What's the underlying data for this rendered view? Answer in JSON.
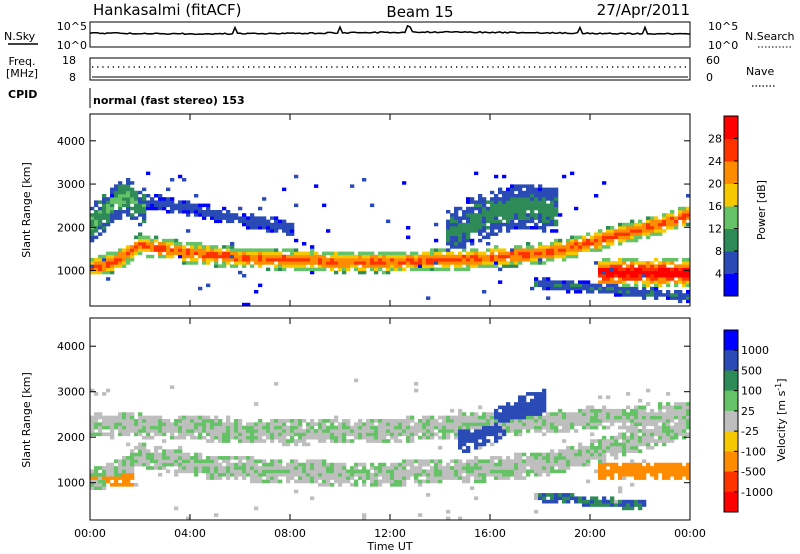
{
  "header": {
    "station": "Hankasalmi (fitACF)",
    "beam": "Beam 15",
    "date": "27/Apr/2011"
  },
  "top_panels": {
    "nsky_label": "N.Sky",
    "nsky_ticks": [
      "10^5",
      "10^0"
    ],
    "nsearch_label": "N.Search",
    "nsearch_ticks": [
      "10^5",
      "10^0"
    ],
    "freq_label": "Freq.",
    "freq_unit": "[MHz]",
    "freq_ticks": [
      "18",
      "8"
    ],
    "nave_label": "Nave",
    "nave_ticks": [
      "60",
      "0"
    ],
    "cpid_label": "CPID",
    "cpid_value": "normal (fast stereo) 153"
  },
  "colors": {
    "power_scale": [
      "#0000ff",
      "#2a4bb5",
      "#2e8b57",
      "#66c266",
      "#f5c800",
      "#ff8c00",
      "#ff3300",
      "#ff0000"
    ],
    "velocity_scale": [
      "#0000ff",
      "#2a4bb5",
      "#2e8b57",
      "#66c266",
      "#bebebe",
      "#f5c800",
      "#ff8c00",
      "#ff3300",
      "#ff0000"
    ],
    "ground_scatter": "#bebebe"
  },
  "chart_data": [
    {
      "type": "heatmap",
      "name": "power",
      "ylabel": "Slant Range [km]",
      "ylim": [
        180,
        4620
      ],
      "yticks": [
        "1000",
        "2000",
        "3000",
        "4000"
      ],
      "colorbar_label": "Power [dB]",
      "colorbar_ticks": [
        "4",
        "8",
        "12",
        "16",
        "20",
        "24",
        "28"
      ],
      "colorbar_range": [
        0,
        32
      ],
      "bands": [
        {
          "x": [
            0,
            1,
            2,
            3,
            4,
            6,
            8,
            10,
            12,
            14,
            16,
            18,
            19,
            20,
            21,
            22,
            23,
            24
          ],
          "y": [
            1050,
            1200,
            1600,
            1500,
            1400,
            1300,
            1250,
            1200,
            1200,
            1250,
            1300,
            1400,
            1500,
            1650,
            1800,
            1950,
            2100,
            2300
          ],
          "width": 280,
          "peak_db": 25
        },
        {
          "x": [
            20.5,
            21,
            22,
            23,
            24
          ],
          "y": [
            950,
            950,
            950,
            950,
            950
          ],
          "width": 380,
          "peak_db": 30
        },
        {
          "x": [
            0,
            0.5,
            1,
            1.5,
            2
          ],
          "y": [
            2000,
            2300,
            2600,
            2700,
            2500
          ],
          "width": 500,
          "peak_db": 12
        },
        {
          "x": [
            14.5,
            15.5,
            16.5,
            17.5,
            18.5
          ],
          "y": [
            1900,
            2200,
            2400,
            2500,
            2400
          ],
          "width": 600,
          "peak_db": 10
        },
        {
          "x": [
            18,
            19,
            20,
            21,
            22,
            23,
            24
          ],
          "y": [
            700,
            650,
            600,
            550,
            500,
            450,
            400
          ],
          "width": 150,
          "peak_db": 8
        },
        {
          "x": [
            2,
            3,
            4,
            5,
            6,
            7,
            8
          ],
          "y": [
            2600,
            2550,
            2450,
            2300,
            2200,
            2100,
            2000
          ],
          "width": 200,
          "peak_db": 6
        }
      ]
    },
    {
      "type": "heatmap",
      "name": "velocity",
      "xlabel": "Time UT",
      "xticks": [
        "00:00",
        "04:00",
        "08:00",
        "12:00",
        "16:00",
        "20:00",
        "00:00"
      ],
      "xlim": [
        0,
        24
      ],
      "ylabel": "Slant Range [km]",
      "ylim": [
        180,
        4620
      ],
      "yticks": [
        "1000",
        "2000",
        "3000",
        "4000"
      ],
      "colorbar_label": "Velocity [m s^-1]",
      "colorbar_ticks": [
        "1000",
        "500",
        "100",
        "25",
        "-25",
        "-100",
        "-500",
        "-1000"
      ],
      "bands": [
        {
          "x": [
            0,
            1,
            2,
            3,
            4,
            6,
            8,
            10,
            12,
            14,
            16,
            18,
            19,
            20,
            21,
            22,
            23,
            24
          ],
          "y": [
            1050,
            1200,
            1600,
            1500,
            1400,
            1300,
            1250,
            1200,
            1200,
            1250,
            1300,
            1400,
            1500,
            1650,
            1800,
            1950,
            2100,
            2300
          ],
          "width": 300,
          "velocity": 0
        },
        {
          "x": [
            0,
            0.5,
            1,
            1.5
          ],
          "y": [
            1100,
            1100,
            1100,
            1100
          ],
          "width": 200,
          "velocity": -150
        },
        {
          "x": [
            20.5,
            21.5,
            22.5,
            23.5,
            24
          ],
          "y": [
            1250,
            1250,
            1250,
            1250,
            1250
          ],
          "width": 200,
          "velocity": -150
        },
        {
          "x": [
            0,
            4,
            8,
            12,
            16,
            20,
            24
          ],
          "y": [
            2300,
            2200,
            2100,
            2150,
            2300,
            2400,
            2500
          ],
          "width": 300,
          "velocity": 0
        },
        {
          "x": [
            15,
            16,
            17,
            18
          ],
          "y": [
            2000,
            2200,
            2500,
            2700
          ],
          "width": 400,
          "velocity": 200
        },
        {
          "x": [
            18,
            19,
            20,
            21,
            22
          ],
          "y": [
            700,
            650,
            600,
            550,
            500
          ],
          "width": 120,
          "velocity": 100
        }
      ]
    }
  ]
}
